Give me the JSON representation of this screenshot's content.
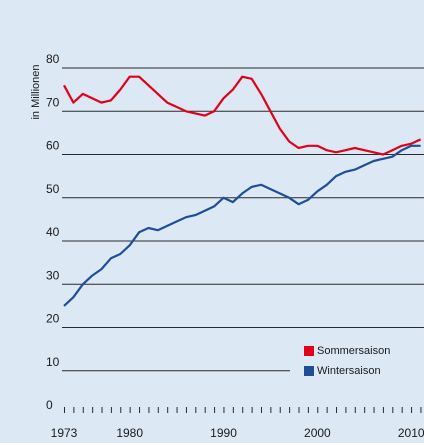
{
  "chart_data": {
    "type": "line",
    "y_axis_label": "in Millionen",
    "x": [
      1973,
      1974,
      1975,
      1976,
      1977,
      1978,
      1979,
      1980,
      1981,
      1982,
      1983,
      1984,
      1985,
      1986,
      1987,
      1988,
      1989,
      1990,
      1991,
      1992,
      1993,
      1994,
      1995,
      1996,
      1997,
      1998,
      1999,
      2000,
      2001,
      2002,
      2003,
      2004,
      2005,
      2006,
      2007,
      2008,
      2009,
      2010,
      2011
    ],
    "series": [
      {
        "name": "Sommersaison",
        "color": "#e2001a",
        "values": [
          76,
          72,
          74,
          73,
          72,
          72.5,
          75,
          78,
          78,
          76,
          74,
          72,
          71,
          70,
          69.5,
          69,
          70,
          73,
          75,
          78,
          77.5,
          74,
          70,
          66,
          63,
          61.5,
          62,
          62,
          61,
          60.5,
          61,
          61.5,
          61,
          60.5,
          60,
          61,
          62,
          62.5,
          63.5
        ]
      },
      {
        "name": "Wintersaison",
        "color": "#1f4e99",
        "values": [
          25,
          27,
          30,
          32,
          33.5,
          36,
          37,
          39,
          42,
          43,
          42.5,
          43.5,
          44.5,
          45.5,
          46,
          47,
          48,
          50,
          49,
          51,
          52.5,
          53,
          52,
          51,
          50,
          48.5,
          49.5,
          51.5,
          53,
          55,
          56,
          56.5,
          57.5,
          58.5,
          59,
          59.5,
          61,
          62,
          62
        ]
      }
    ],
    "xlim": [
      1973,
      2011
    ],
    "xticks": [
      1973,
      1980,
      1990,
      2000,
      2010
    ],
    "ylim": [
      0,
      80
    ],
    "yticks": [
      0,
      10,
      20,
      30,
      40,
      50,
      60,
      70,
      80
    ],
    "grid": true,
    "legend": "lower right"
  }
}
